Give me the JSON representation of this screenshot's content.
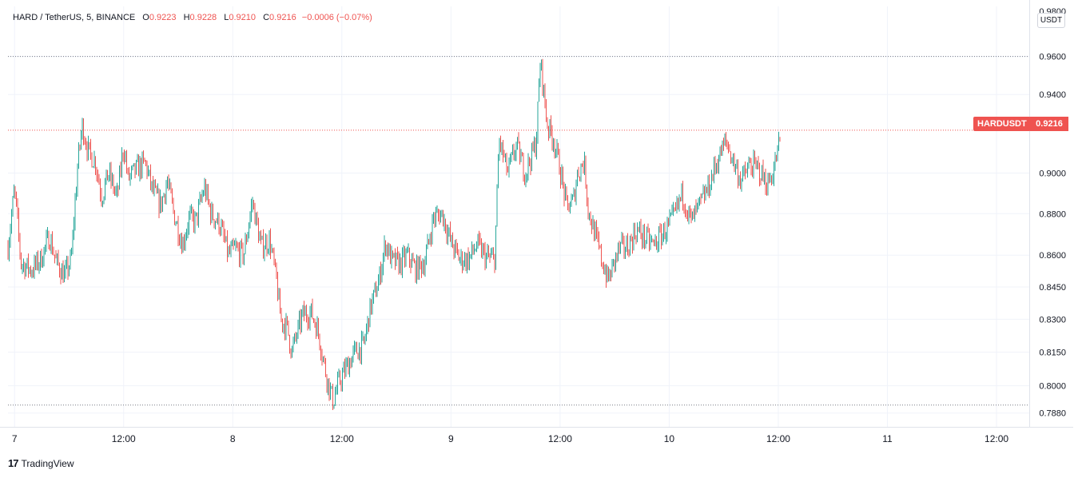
{
  "legend": {
    "symbol": "HARD / TetherUS, 5, BINANCE",
    "open_label": "O",
    "open": "0.9223",
    "high_label": "H",
    "high": "0.9228",
    "low_label": "L",
    "low": "0.9210",
    "close_label": "C",
    "close": "0.9216",
    "change": "−0.0006 (−0.07%)"
  },
  "currency": "USDT",
  "price_tag": {
    "name": "HARDUSDT",
    "value": "0.9216"
  },
  "brand": {
    "logo": "17",
    "name": "TradingView"
  },
  "colors": {
    "up": "#26a69a",
    "down": "#ef5350",
    "grid": "#f0f3fa",
    "axis": "#131722"
  },
  "chart_data": {
    "type": "candlestick",
    "y_scale": "log",
    "ylim": [
      0.782,
      0.987
    ],
    "y_ticks": [
      {
        "value": 0.96,
        "label": "0.9600"
      },
      {
        "value": 0.94,
        "label": "0.9400"
      },
      {
        "value": 0.9,
        "label": "0.9000"
      },
      {
        "value": 0.88,
        "label": "0.8800"
      },
      {
        "value": 0.86,
        "label": "0.8600"
      },
      {
        "value": 0.845,
        "label": "0.8450"
      },
      {
        "value": 0.83,
        "label": "0.8300"
      },
      {
        "value": 0.815,
        "label": "0.8150"
      },
      {
        "value": 0.8,
        "label": "0.8000"
      },
      {
        "value": 0.788,
        "label": "0.7880"
      }
    ],
    "y_top_partial_label": "0.9800",
    "x_range_days": [
      6.97,
      11.65
    ],
    "x_ticks": [
      {
        "value": 7.0,
        "label": "7"
      },
      {
        "value": 7.5,
        "label": "12:00"
      },
      {
        "value": 8.0,
        "label": "8"
      },
      {
        "value": 8.5,
        "label": "12:00"
      },
      {
        "value": 9.0,
        "label": "9"
      },
      {
        "value": 9.5,
        "label": "12:00"
      },
      {
        "value": 10.0,
        "label": "10"
      },
      {
        "value": 10.5,
        "label": "12:00"
      },
      {
        "value": 11.0,
        "label": "11"
      },
      {
        "value": 11.5,
        "label": "12:00"
      }
    ],
    "period_high": 0.96,
    "period_low": 0.7915,
    "last_price": 0.9216,
    "close_path": [
      [
        6.97,
        0.864
      ],
      [
        7.0,
        0.892
      ],
      [
        7.03,
        0.856
      ],
      [
        7.08,
        0.853
      ],
      [
        7.12,
        0.858
      ],
      [
        7.16,
        0.869
      ],
      [
        7.19,
        0.857
      ],
      [
        7.23,
        0.85
      ],
      [
        7.26,
        0.858
      ],
      [
        7.29,
        0.905
      ],
      [
        7.31,
        0.924
      ],
      [
        7.34,
        0.91
      ],
      [
        7.37,
        0.906
      ],
      [
        7.4,
        0.888
      ],
      [
        7.43,
        0.9
      ],
      [
        7.47,
        0.888
      ],
      [
        7.5,
        0.914
      ],
      [
        7.52,
        0.897
      ],
      [
        7.56,
        0.902
      ],
      [
        7.6,
        0.905
      ],
      [
        7.63,
        0.892
      ],
      [
        7.67,
        0.884
      ],
      [
        7.7,
        0.896
      ],
      [
        7.73,
        0.88
      ],
      [
        7.77,
        0.865
      ],
      [
        7.8,
        0.878
      ],
      [
        7.83,
        0.876
      ],
      [
        7.87,
        0.893
      ],
      [
        7.9,
        0.88
      ],
      [
        7.94,
        0.875
      ],
      [
        7.98,
        0.86
      ],
      [
        8.01,
        0.863
      ],
      [
        8.05,
        0.86
      ],
      [
        8.09,
        0.886
      ],
      [
        8.13,
        0.864
      ],
      [
        8.17,
        0.867
      ],
      [
        8.2,
        0.848
      ],
      [
        8.22,
        0.83
      ],
      [
        8.25,
        0.826
      ],
      [
        8.27,
        0.815
      ],
      [
        8.32,
        0.832
      ],
      [
        8.36,
        0.833
      ],
      [
        8.39,
        0.825
      ],
      [
        8.43,
        0.804
      ],
      [
        8.46,
        0.793
      ],
      [
        8.48,
        0.8
      ],
      [
        8.52,
        0.808
      ],
      [
        8.56,
        0.815
      ],
      [
        8.6,
        0.818
      ],
      [
        8.63,
        0.835
      ],
      [
        8.67,
        0.848
      ],
      [
        8.7,
        0.866
      ],
      [
        8.73,
        0.857
      ],
      [
        8.77,
        0.856
      ],
      [
        8.8,
        0.86
      ],
      [
        8.84,
        0.853
      ],
      [
        8.88,
        0.857
      ],
      [
        8.92,
        0.878
      ],
      [
        8.96,
        0.88
      ],
      [
        9.0,
        0.866
      ],
      [
        9.04,
        0.858
      ],
      [
        9.08,
        0.858
      ],
      [
        9.12,
        0.865
      ],
      [
        9.16,
        0.859
      ],
      [
        9.2,
        0.858
      ],
      [
        9.21,
        0.885
      ],
      [
        9.22,
        0.917
      ],
      [
        9.26,
        0.9
      ],
      [
        9.3,
        0.914
      ],
      [
        9.34,
        0.9
      ],
      [
        9.39,
        0.915
      ],
      [
        9.41,
        0.958
      ],
      [
        9.44,
        0.925
      ],
      [
        9.47,
        0.917
      ],
      [
        9.5,
        0.902
      ],
      [
        9.53,
        0.883
      ],
      [
        9.56,
        0.886
      ],
      [
        9.58,
        0.9
      ],
      [
        9.61,
        0.906
      ],
      [
        9.63,
        0.881
      ],
      [
        9.66,
        0.87
      ],
      [
        9.69,
        0.858
      ],
      [
        9.72,
        0.848
      ],
      [
        9.77,
        0.863
      ],
      [
        9.81,
        0.864
      ],
      [
        9.85,
        0.872
      ],
      [
        9.89,
        0.868
      ],
      [
        9.93,
        0.865
      ],
      [
        9.97,
        0.87
      ],
      [
        10.02,
        0.878
      ],
      [
        10.06,
        0.89
      ],
      [
        10.1,
        0.876
      ],
      [
        10.14,
        0.884
      ],
      [
        10.18,
        0.893
      ],
      [
        10.22,
        0.906
      ],
      [
        10.26,
        0.916
      ],
      [
        10.29,
        0.907
      ],
      [
        10.33,
        0.896
      ],
      [
        10.37,
        0.904
      ],
      [
        10.41,
        0.902
      ],
      [
        10.45,
        0.894
      ],
      [
        10.48,
        0.902
      ],
      [
        10.51,
        0.918
      ]
    ]
  }
}
